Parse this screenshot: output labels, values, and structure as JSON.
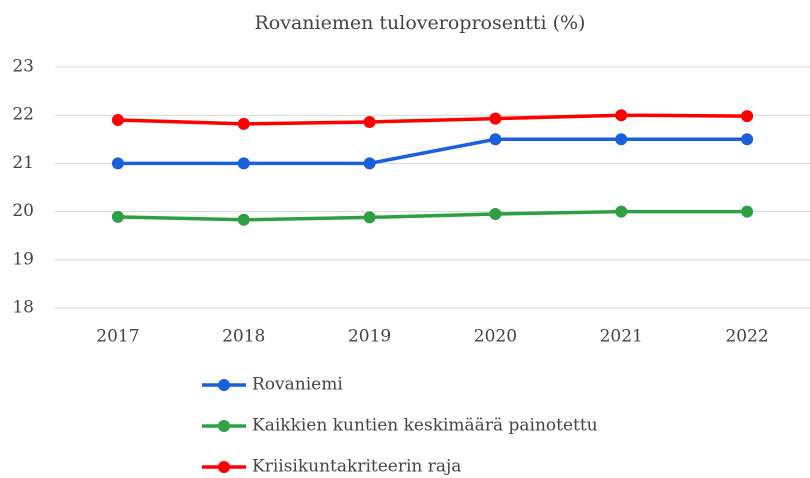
{
  "chart_data": {
    "type": "line",
    "title": "Rovaniemen tuloveroprosentti (%)",
    "categories": [
      "2017",
      "2018",
      "2019",
      "2020",
      "2021",
      "2022"
    ],
    "series": [
      {
        "name": "Rovaniemi",
        "color": "#1a5fdc",
        "values": [
          21,
          21,
          21,
          21.5,
          21.5,
          21.5
        ]
      },
      {
        "name": "Kaikkien kuntien keskimäärä painotettu",
        "color": "#2ea043",
        "values": [
          19.89,
          19.83,
          19.88,
          19.95,
          20.0,
          20.0
        ]
      },
      {
        "name": "Kriisikuntakriteerin raja",
        "color": "#ff0000",
        "values": [
          21.9,
          21.82,
          21.86,
          21.93,
          22.0,
          21.98
        ]
      }
    ],
    "ylim": [
      18,
      23
    ],
    "yticks": [
      18,
      19,
      20,
      21,
      22,
      23
    ],
    "grid": true,
    "legend": "bottom"
  }
}
